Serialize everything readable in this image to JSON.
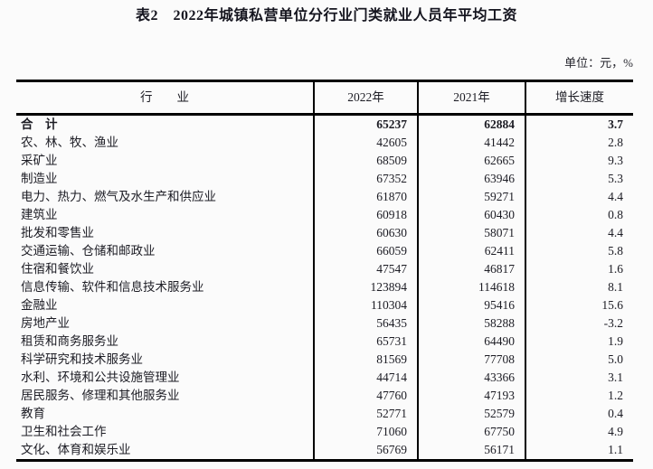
{
  "title": {
    "text": "表2　2022年城镇私营单位分行业门类就业人员年平均工资"
  },
  "unit_note": "单位：元，%",
  "colors": {
    "page_background": "#fbfbfb",
    "border": "#000000",
    "title_text": "#15151f",
    "body_text": "#1c1c24"
  },
  "table": {
    "columns": [
      "行　　业",
      "2022年",
      "2021年",
      "增长速度"
    ],
    "rows": [
      {
        "industry": "合　计",
        "y2022": "65237",
        "y2021": "62884",
        "growth": "3.7",
        "bold": true
      },
      {
        "industry": "农、林、牧、渔业",
        "y2022": "42605",
        "y2021": "41442",
        "growth": "2.8",
        "bold": false
      },
      {
        "industry": "采矿业",
        "y2022": "68509",
        "y2021": "62665",
        "growth": "9.3",
        "bold": false
      },
      {
        "industry": "制造业",
        "y2022": "67352",
        "y2021": "63946",
        "growth": "5.3",
        "bold": false
      },
      {
        "industry": "电力、热力、燃气及水生产和供应业",
        "y2022": "61870",
        "y2021": "59271",
        "growth": "4.4",
        "bold": false
      },
      {
        "industry": "建筑业",
        "y2022": "60918",
        "y2021": "60430",
        "growth": "0.8",
        "bold": false
      },
      {
        "industry": "批发和零售业",
        "y2022": "60630",
        "y2021": "58071",
        "growth": "4.4",
        "bold": false
      },
      {
        "industry": "交通运输、仓储和邮政业",
        "y2022": "66059",
        "y2021": "62411",
        "growth": "5.8",
        "bold": false
      },
      {
        "industry": "住宿和餐饮业",
        "y2022": "47547",
        "y2021": "46817",
        "growth": "1.6",
        "bold": false
      },
      {
        "industry": "信息传输、软件和信息技术服务业",
        "y2022": "123894",
        "y2021": "114618",
        "growth": "8.1",
        "bold": false
      },
      {
        "industry": "金融业",
        "y2022": "110304",
        "y2021": "95416",
        "growth": "15.6",
        "bold": false
      },
      {
        "industry": "房地产业",
        "y2022": "56435",
        "y2021": "58288",
        "growth": "-3.2",
        "bold": false
      },
      {
        "industry": "租赁和商务服务业",
        "y2022": "65731",
        "y2021": "64490",
        "growth": "1.9",
        "bold": false
      },
      {
        "industry": "科学研究和技术服务业",
        "y2022": "81569",
        "y2021": "77708",
        "growth": "5.0",
        "bold": false
      },
      {
        "industry": "水利、环境和公共设施管理业",
        "y2022": "44714",
        "y2021": "43366",
        "growth": "3.1",
        "bold": false
      },
      {
        "industry": "居民服务、修理和其他服务业",
        "y2022": "47760",
        "y2021": "47193",
        "growth": "1.2",
        "bold": false
      },
      {
        "industry": "教育",
        "y2022": "52771",
        "y2021": "52579",
        "growth": "0.4",
        "bold": false
      },
      {
        "industry": "卫生和社会工作",
        "y2022": "71060",
        "y2021": "67750",
        "growth": "4.9",
        "bold": false
      },
      {
        "industry": "文化、体育和娱乐业",
        "y2022": "56769",
        "y2021": "56171",
        "growth": "1.1",
        "bold": false
      }
    ]
  }
}
